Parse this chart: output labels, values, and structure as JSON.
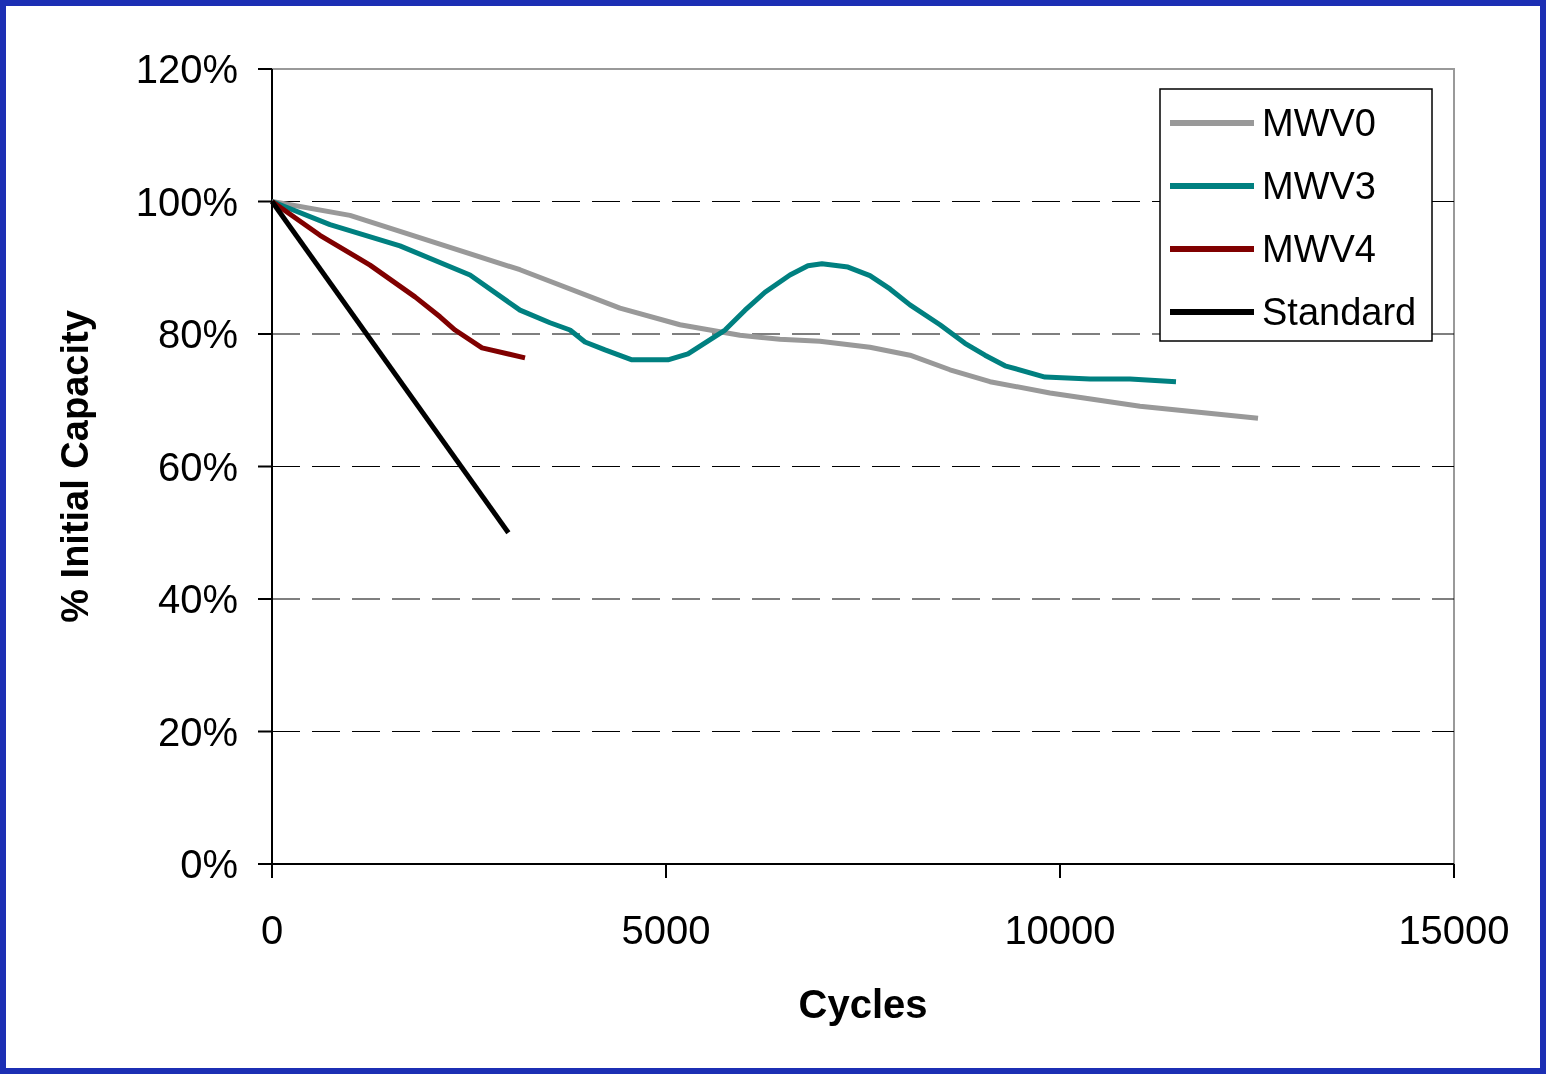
{
  "chart_data": {
    "type": "line",
    "xlabel": "Cycles",
    "ylabel": "% Initial Capacity",
    "xlim": [
      0,
      15000
    ],
    "xticks": [
      0,
      5000,
      10000,
      15000
    ],
    "ylim": [
      0,
      120
    ],
    "yticks": [
      {
        "value": 0,
        "label": "0%"
      },
      {
        "value": 20,
        "label": "20%"
      },
      {
        "value": 40,
        "label": "40%"
      },
      {
        "value": 60,
        "label": "60%"
      },
      {
        "value": 80,
        "label": "80%"
      },
      {
        "value": 100,
        "label": "100%"
      },
      {
        "value": 120,
        "label": "120%"
      }
    ],
    "grid": "y",
    "legend": "top right",
    "marker": "none",
    "series": [
      {
        "name": "MWV0",
        "color": "#999999",
        "x": [
          0,
          990,
          3147,
          4416,
          5177,
          5939,
          6446,
          6954,
          7588,
          8096,
          8604,
          9112,
          9873,
          11015,
          12513
        ],
        "values": [
          100,
          97.9,
          89.7,
          83.9,
          81.4,
          79.8,
          79.2,
          78.9,
          78.0,
          76.8,
          74.6,
          72.8,
          71.1,
          69.1,
          67.3
        ]
      },
      {
        "name": "MWV3",
        "color": "#008080",
        "x": [
          0,
          736,
          1624,
          2513,
          3147,
          3528,
          3782,
          3972,
          4226,
          4568,
          5025,
          5279,
          5749,
          6003,
          6256,
          6573,
          6801,
          6979,
          7309,
          7588,
          7842,
          8096,
          8477,
          8794,
          9048,
          9302,
          9809,
          10381,
          10888,
          11472
        ],
        "values": [
          100,
          96.5,
          93.3,
          88.9,
          83.6,
          81.7,
          80.6,
          78.8,
          77.6,
          76.1,
          76.1,
          77.0,
          80.6,
          83.6,
          86.3,
          88.9,
          90.3,
          90.6,
          90.1,
          88.8,
          86.8,
          84.4,
          81.4,
          78.6,
          76.8,
          75.2,
          73.5,
          73.2,
          73.2,
          72.8
        ]
      },
      {
        "name": "MWV4",
        "color": "#800000",
        "x": [
          0,
          609,
          1244,
          1815,
          2132,
          2323,
          2665,
          3211
        ],
        "values": [
          100,
          94.9,
          90.4,
          85.6,
          82.6,
          80.6,
          77.9,
          76.4
        ]
      },
      {
        "name": "Standard",
        "color": "#000000",
        "x": [
          0,
          3000
        ],
        "values": [
          100,
          50
        ]
      }
    ]
  }
}
